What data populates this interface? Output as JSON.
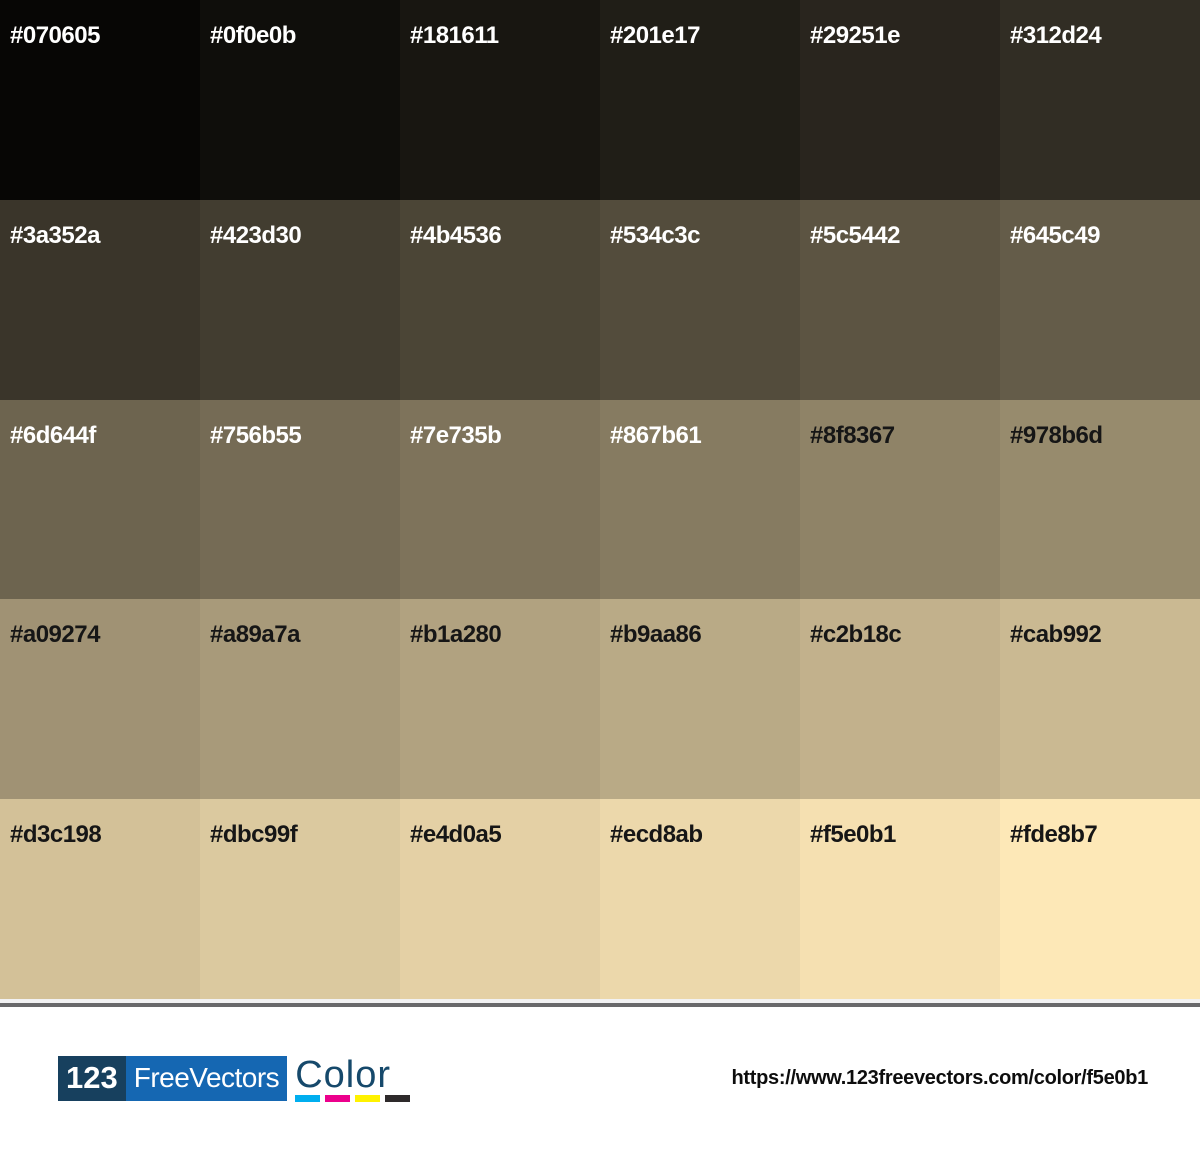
{
  "palette": {
    "columns": 6,
    "rows": 5,
    "light_text_color": "#ffffff",
    "dark_text_color": "#161616",
    "swatches": [
      {
        "hex": "#070605",
        "text": "light"
      },
      {
        "hex": "#0f0e0b",
        "text": "light"
      },
      {
        "hex": "#181611",
        "text": "light"
      },
      {
        "hex": "#201e17",
        "text": "light"
      },
      {
        "hex": "#29251e",
        "text": "light"
      },
      {
        "hex": "#312d24",
        "text": "light"
      },
      {
        "hex": "#3a352a",
        "text": "light"
      },
      {
        "hex": "#423d30",
        "text": "light"
      },
      {
        "hex": "#4b4536",
        "text": "light"
      },
      {
        "hex": "#534c3c",
        "text": "light"
      },
      {
        "hex": "#5c5442",
        "text": "light"
      },
      {
        "hex": "#645c49",
        "text": "light"
      },
      {
        "hex": "#6d644f",
        "text": "light"
      },
      {
        "hex": "#756b55",
        "text": "light"
      },
      {
        "hex": "#7e735b",
        "text": "light"
      },
      {
        "hex": "#867b61",
        "text": "light"
      },
      {
        "hex": "#8f8367",
        "text": "dark"
      },
      {
        "hex": "#978b6d",
        "text": "dark"
      },
      {
        "hex": "#a09274",
        "text": "dark"
      },
      {
        "hex": "#a89a7a",
        "text": "dark"
      },
      {
        "hex": "#b1a280",
        "text": "dark"
      },
      {
        "hex": "#b9aa86",
        "text": "dark"
      },
      {
        "hex": "#c2b18c",
        "text": "dark"
      },
      {
        "hex": "#cab992",
        "text": "dark"
      },
      {
        "hex": "#d3c198",
        "text": "dark"
      },
      {
        "hex": "#dbc99f",
        "text": "dark"
      },
      {
        "hex": "#e4d0a5",
        "text": "dark"
      },
      {
        "hex": "#ecd8ab",
        "text": "dark"
      },
      {
        "hex": "#f5e0b1",
        "text": "dark"
      },
      {
        "hex": "#fde8b7",
        "text": "dark"
      }
    ]
  },
  "footer": {
    "logo": {
      "num": "123",
      "name": "FreeVectors",
      "suffix": "Color",
      "cmyk": [
        "#00aeef",
        "#ec008c",
        "#fff200",
        "#2e2a2b"
      ]
    },
    "logo_colors": {
      "navy": "#17405e",
      "blue": "#1567b2",
      "color_text": "#16496b"
    },
    "separator_color": "#69696b",
    "url": "https://www.123freevectors.com/color/f5e0b1"
  }
}
